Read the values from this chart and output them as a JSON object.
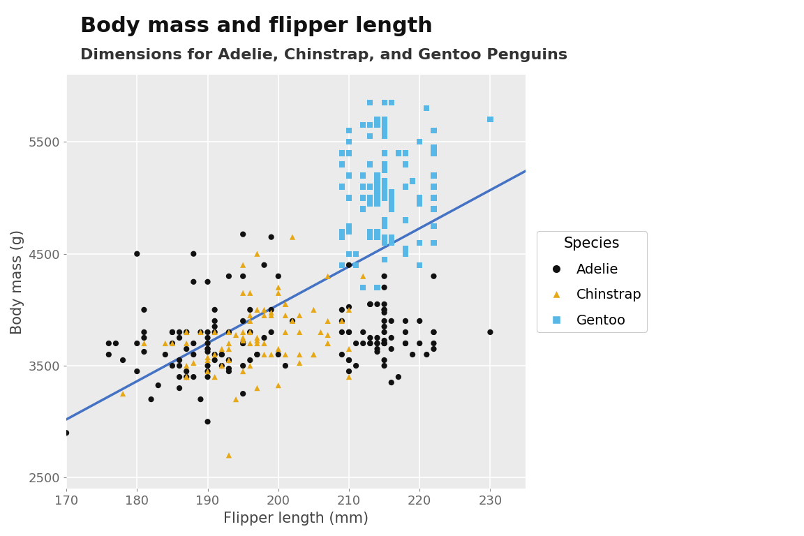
{
  "title": "Body mass and flipper length",
  "subtitle": "Dimensions for Adelie, Chinstrap, and Gentoo Penguins",
  "xlabel": "Flipper length (mm)",
  "ylabel": "Body mass (g)",
  "xlim": [
    170,
    235
  ],
  "ylim": [
    2400,
    6100
  ],
  "xticks": [
    170,
    180,
    190,
    200,
    210,
    220,
    230
  ],
  "yticks": [
    2500,
    3500,
    4500,
    5500
  ],
  "background_color": "#EBEBEB",
  "grid_color": "#FFFFFF",
  "line_color": "#4472C4",
  "ci_color": "#AAAAAA",
  "species_colors": {
    "Adelie": "#111111",
    "Chinstrap": "#E6A817",
    "Gentoo": "#57B8E8"
  },
  "species_markers": {
    "Adelie": "o",
    "Chinstrap": "^",
    "Gentoo": "s"
  },
  "marker_size": 35,
  "title_fontsize": 22,
  "subtitle_fontsize": 16,
  "axis_label_fontsize": 15,
  "tick_fontsize": 13,
  "legend_fontsize": 14,
  "adelie_flipper": [
    181,
    186,
    195,
    193,
    190,
    181,
    195,
    193,
    190,
    186,
    180,
    182,
    191,
    198,
    185,
    180,
    180,
    183,
    186,
    170,
    181,
    195,
    181,
    177,
    176,
    196,
    196,
    190,
    188,
    190,
    200,
    187,
    190,
    195,
    191,
    186,
    188,
    190,
    192,
    185,
    178,
    186,
    188,
    192,
    196,
    197,
    190,
    195,
    191,
    196,
    188,
    199,
    189,
    189,
    187,
    198,
    176,
    202,
    186,
    199,
    191,
    195,
    191,
    210,
    190,
    197,
    193,
    199,
    187,
    190,
    191,
    200,
    185,
    193,
    193,
    187,
    188,
    190,
    192,
    185,
    190,
    184,
    195,
    193,
    187,
    201,
    211,
    230,
    210,
    218,
    215,
    210,
    211,
    219,
    209,
    215,
    214,
    216,
    214,
    213,
    210,
    217,
    210,
    221,
    209,
    222,
    218,
    215,
    213,
    215,
    215,
    215,
    216,
    215,
    210,
    220,
    222,
    209,
    212,
    214,
    214,
    215,
    222,
    213,
    218,
    215,
    213,
    215,
    216,
    215,
    210,
    220,
    222,
    209,
    212,
    214,
    214,
    215,
    222,
    213,
    218,
    215,
    213,
    215,
    216,
    215
  ],
  "adelie_mass": [
    3750,
    3800,
    3250,
    3450,
    3650,
    3625,
    4675,
    3475,
    4250,
    3300,
    3700,
    3200,
    3800,
    4400,
    3700,
    3450,
    4500,
    3325,
    3400,
    2900,
    3800,
    4300,
    4000,
    3700,
    3600,
    3800,
    3800,
    3625,
    4500,
    3500,
    4300,
    3450,
    3750,
    3700,
    4000,
    3750,
    3600,
    3650,
    3500,
    3500,
    3550,
    3500,
    3400,
    3600,
    3550,
    3600,
    3800,
    3500,
    3850,
    4000,
    3700,
    4650,
    3200,
    3800,
    3800,
    3750,
    3700,
    3900,
    3550,
    4000,
    3600,
    3900,
    3900,
    3800,
    3000,
    3600,
    3800,
    3800,
    3650,
    3700,
    3550,
    3600,
    3800,
    4300,
    3550,
    3800,
    4250,
    3450,
    3600,
    3800,
    3400,
    3600,
    3700,
    3550,
    3400,
    3500,
    3500,
    3800,
    3550,
    3800,
    4200,
    3550,
    3700,
    3600,
    3800,
    3700,
    3650,
    3650,
    4050,
    3750,
    4400,
    3400,
    3450,
    3600,
    3900,
    3800,
    3700,
    3500,
    4050,
    3725,
    3975,
    3700,
    3750,
    3900,
    4025,
    3900,
    4300,
    3600,
    3800,
    3750,
    3625,
    4300,
    3650,
    3700,
    3700,
    3550,
    3700,
    3850,
    3350,
    3700,
    3800,
    3700,
    3800,
    4000,
    3700,
    3700,
    3700,
    4000,
    3700,
    4050,
    3900,
    4050,
    4050,
    3800,
    3900,
    4000
  ],
  "chinstrap_flipper": [
    192,
    196,
    193,
    188,
    197,
    198,
    178,
    197,
    195,
    198,
    193,
    194,
    185,
    201,
    190,
    201,
    197,
    181,
    190,
    195,
    191,
    187,
    193,
    195,
    197,
    200,
    200,
    191,
    205,
    187,
    201,
    187,
    203,
    195,
    199,
    195,
    210,
    192,
    205,
    210,
    187,
    196,
    196,
    196,
    201,
    190,
    212,
    187,
    198,
    199,
    201,
    193,
    203,
    187,
    197,
    191,
    203,
    202,
    194,
    206,
    189,
    195,
    207,
    202,
    193,
    210,
    198,
    209,
    200,
    207,
    196,
    196,
    184,
    199,
    197,
    207,
    207,
    200,
    203,
    205,
    207
  ],
  "chinstrap_mass": [
    3500,
    3900,
    3650,
    3525,
    3725,
    3950,
    3250,
    3750,
    4150,
    3700,
    3800,
    3775,
    3700,
    4050,
    3575,
    4050,
    3300,
    3700,
    3450,
    4400,
    3600,
    3400,
    2700,
    3450,
    4500,
    3325,
    4200,
    3400,
    3600,
    3800,
    3950,
    3800,
    3800,
    3800,
    3975,
    3725,
    3650,
    3650,
    4000,
    3400,
    3500,
    3800,
    3500,
    3950,
    3600,
    3550,
    4300,
    3400,
    4000,
    3600,
    3800,
    3700,
    3600,
    3700,
    3700,
    3800,
    3950,
    4650,
    3200,
    3800,
    3800,
    3750,
    3700,
    3900,
    3550,
    4000,
    3600,
    3900,
    4150,
    3700,
    4150,
    3700,
    3700,
    3950,
    4000,
    4300,
    3900,
    3650,
    3525,
    3600,
    3775
  ],
  "gentoo_flipper": [
    211,
    230,
    210,
    218,
    215,
    210,
    211,
    219,
    209,
    215,
    214,
    216,
    214,
    213,
    210,
    217,
    210,
    221,
    209,
    222,
    218,
    215,
    213,
    215,
    215,
    215,
    216,
    215,
    210,
    220,
    222,
    209,
    212,
    214,
    214,
    215,
    222,
    213,
    218,
    215,
    213,
    215,
    216,
    215,
    210,
    220,
    222,
    209,
    212,
    214,
    214,
    215,
    222,
    213,
    218,
    215,
    213,
    215,
    216,
    215,
    210,
    220,
    222,
    209,
    212,
    214,
    214,
    215,
    222,
    213,
    218,
    215,
    213,
    215,
    216,
    215,
    210,
    220,
    222,
    209,
    212,
    214,
    214,
    215,
    222,
    213,
    218,
    215,
    213,
    215,
    216,
    215,
    210,
    220,
    222,
    209,
    212,
    214,
    214,
    215,
    222,
    213,
    218,
    215,
    213,
    215,
    216,
    215,
    210,
    220,
    222,
    209,
    212,
    214
  ],
  "gentoo_mass": [
    4500,
    5700,
    5400,
    4550,
    4800,
    5200,
    4400,
    5150,
    4650,
    5550,
    4650,
    5850,
    4200,
    5850,
    5600,
    5400,
    5200,
    5800,
    5400,
    5200,
    5400,
    5600,
    5100,
    5850,
    5300,
    5700,
    5000,
    4450,
    5000,
    5000,
    5000,
    5300,
    4200,
    5650,
    4700,
    5150,
    5100,
    5650,
    5400,
    4600,
    5550,
    5250,
    4900,
    5050,
    4700,
    4400,
    5600,
    5100,
    5200,
    4200,
    5700,
    5000,
    5000,
    5100,
    5100,
    5700,
    5000,
    5400,
    4650,
    4450,
    4500,
    4600,
    5450,
    4400,
    5650,
    5050,
    5700,
    4750,
    4600,
    4650,
    5300,
    5000,
    4700,
    5050,
    4600,
    4650,
    5500,
    5000,
    5400,
    4700,
    4900,
    4950,
    5200,
    5600,
    5100,
    5300,
    4500,
    5300,
    4700,
    5000,
    5050,
    5300,
    5200,
    5500,
    4900,
    5100,
    5100,
    5150,
    5000,
    5650,
    4750,
    5000,
    4800,
    5000,
    4950,
    5400,
    4950,
    5100,
    4750,
    4950,
    5450,
    5100,
    5000,
    5100
  ],
  "fig_width": 11.52,
  "fig_height": 7.68
}
